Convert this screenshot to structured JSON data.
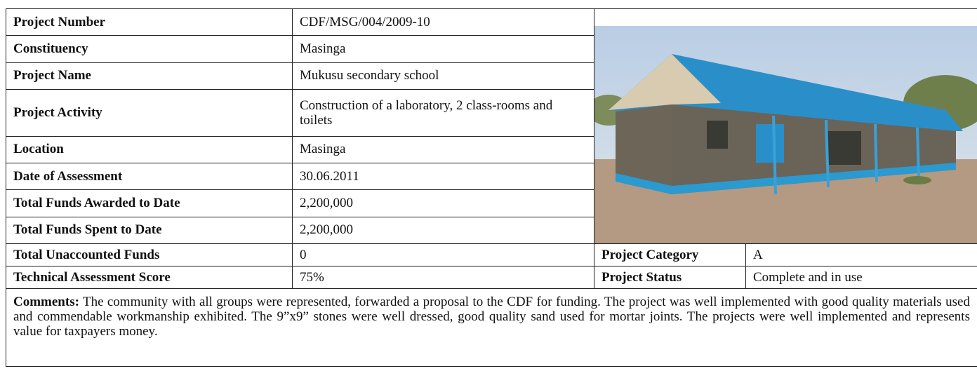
{
  "table": {
    "rows": [
      [
        "Project Number",
        "CDF/MSG/004/2009-10"
      ],
      [
        "Constituency",
        "Masinga"
      ],
      [
        "Project Name",
        "Mukusu secondary school"
      ],
      [
        "Project Activity",
        "Construction of a laboratory, 2 class-rooms and toilets"
      ],
      [
        "Location",
        "Masinga"
      ],
      [
        "Date of Assessment",
        "30.06.2011"
      ],
      [
        "Total Funds Awarded to Date",
        "2,200,000"
      ],
      [
        "Total Funds Spent to Date",
        "2,200,000"
      ],
      [
        "Total Unaccounted Funds",
        "0"
      ],
      [
        "Technical Assessment Score",
        "75%"
      ]
    ],
    "side": [
      [
        "Project Category",
        "A"
      ],
      [
        "Project Status",
        "Complete and in use"
      ]
    ],
    "comments": {
      "label": "Comments:",
      "text": "The community with all groups were represented, forwarded a proposal to the CDF for funding. The project was well implemented with good quality materials used and commendable workmanship exhibited. The  9”x9” stones were well dressed, good quality sand used for mortar joints. The projects were well implemented and represents value for taxpayers money."
    }
  }
}
